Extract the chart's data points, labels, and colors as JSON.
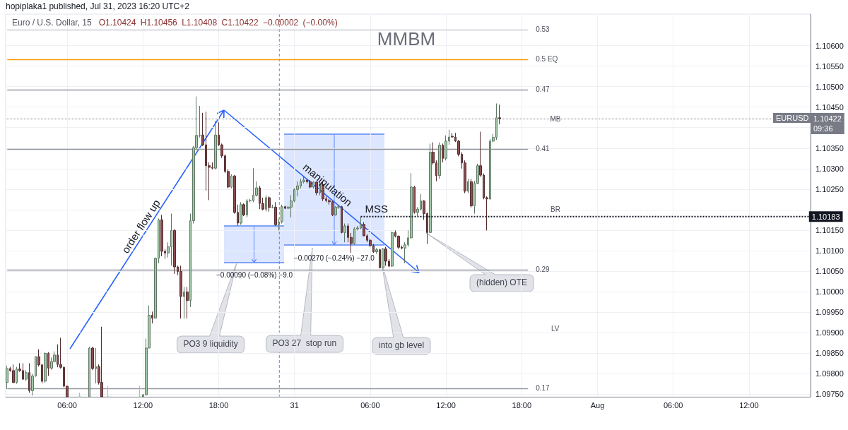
{
  "chart_data": {
    "type": "candlestick",
    "title": "MMBM",
    "subtitle": "Euro / U.S. Dollar, 15",
    "annotations": [
      "hopiplaka1 published, Jul 31, 2023 16:20 UTC+2",
      "O1.10424 H1.10456 L1.10408 C1.10422 −0.00002 (−0.00%)",
      "0.53",
      "0.5 EQ",
      "0.47",
      "MB",
      "0.41",
      "BR",
      "0.29",
      "LV",
      "0.17",
      "EURUSD",
      "order flow up",
      "manipulation",
      "−0.00090 (−0.08%) −9.0",
      "−0.00270 (−0.24%) −27.0",
      "PO3 9 liquidity",
      "PO3 27  stop run",
      "into gb level",
      "(hidden) OTE"
    ],
    "categories": [
      null,
      null,
      null,
      null,
      null,
      null,
      null,
      null,
      null,
      null,
      null,
      null,
      null,
      null,
      null,
      null,
      null,
      null,
      null,
      "06:00",
      null,
      null,
      null,
      null,
      null,
      null,
      null,
      null,
      null,
      null,
      null,
      null,
      null,
      null,
      null,
      null,
      null,
      null,
      null,
      null,
      null,
      null,
      null,
      "12:00",
      null,
      null,
      null,
      null,
      null,
      null,
      null,
      null,
      null,
      null,
      null,
      null,
      null,
      null,
      null,
      null,
      null,
      null,
      null,
      null,
      null,
      null,
      null,
      "18:00",
      null,
      null,
      null,
      null,
      null,
      null,
      null,
      null,
      null,
      null,
      null,
      null,
      null,
      null,
      null,
      null,
      null,
      null,
      null,
      null,
      null,
      null,
      null,
      "31",
      null,
      null,
      null,
      null,
      null,
      null,
      null,
      null,
      null,
      null,
      null,
      null,
      null,
      null,
      null,
      null,
      null,
      null,
      null,
      null,
      null,
      null,
      null,
      "06:00",
      null,
      null,
      null,
      null,
      null,
      null,
      null,
      null,
      null,
      null,
      null,
      null,
      null,
      null,
      null,
      null,
      null,
      null,
      null,
      null,
      null,
      null,
      null,
      "12:00",
      null,
      null,
      null,
      null,
      null,
      null,
      null,
      null,
      null,
      null,
      null,
      null,
      null,
      null,
      null,
      null,
      null,
      null,
      null,
      null,
      null,
      null,
      null,
      "18:00",
      null,
      null,
      null,
      null,
      null,
      null,
      null,
      null,
      null,
      null,
      null,
      null,
      null,
      null,
      null,
      null,
      null,
      null,
      null,
      null,
      null,
      null,
      null,
      "Aug",
      null,
      null,
      null,
      null,
      null,
      null,
      null,
      null,
      null,
      null,
      null,
      null,
      null,
      null,
      null,
      null,
      null,
      null,
      null,
      null,
      null,
      null,
      null,
      "06:00",
      null,
      null,
      null,
      null,
      null,
      null,
      null,
      null,
      null,
      null,
      null,
      null,
      null,
      null,
      null,
      null,
      null,
      null,
      null,
      null,
      null,
      null,
      null,
      "12:00",
      null,
      null,
      null,
      null,
      null,
      null,
      null,
      null,
      null,
      null,
      null,
      null,
      null,
      null,
      null,
      null,
      null,
      null,
      null
    ],
    "ylim": [
      1.09743,
      1.10677
    ],
    "yticks": [
      {
        "value": 1.0975,
        "label": "1.09750"
      },
      {
        "value": 1.098,
        "label": "1.09800"
      },
      {
        "value": 1.0985,
        "label": "1.09850"
      },
      {
        "value": 1.099,
        "label": "1.09900"
      },
      {
        "value": 1.0995,
        "label": "1.09950"
      },
      {
        "value": 1.1,
        "label": "1.10000"
      },
      {
        "value": 1.1005,
        "label": "1.10050"
      },
      {
        "value": 1.101,
        "label": "1.10100"
      },
      {
        "value": 1.1015,
        "label": "1.10150"
      },
      {
        "value": 1.102,
        "label": null
      },
      {
        "value": 1.1025,
        "label": "1.10250"
      },
      {
        "value": 1.103,
        "label": "1.10300"
      },
      {
        "value": 1.1035,
        "label": "1.10350"
      },
      {
        "value": 1.104,
        "label": null
      },
      {
        "value": 1.1045,
        "label": "1.10450"
      },
      {
        "value": 1.105,
        "label": "1.10500"
      },
      {
        "value": 1.1055,
        "label": "1.10550"
      },
      {
        "value": 1.106,
        "label": "1.10600"
      }
    ],
    "grid": true,
    "ref_lines": [
      {
        "axis": "y",
        "value": 1.10639,
        "color": "#c9cbd1"
      },
      {
        "axis": "y",
        "value": 1.10566,
        "color": "#ff9800"
      },
      {
        "axis": "y",
        "value": 1.10493,
        "color": "#9598a1"
      },
      {
        "axis": "y",
        "value": 1.10347,
        "color": "#9598a1"
      },
      {
        "axis": "y",
        "value": 1.10053,
        "color": "#9598a1"
      },
      {
        "axis": "y",
        "value": 1.09763,
        "color": "#9598a1"
      },
      {
        "axis": "y",
        "value": 1.10422,
        "label": "1.10422\n09:36",
        "color": "#787b86",
        "line_style": "dotted"
      }
    ],
    "series": [
      {
        "ohlc": [
          [
            1.09778,
            1.09819,
            1.09762,
            1.09812
          ],
          [
            1.09812,
            1.09816,
            1.09804,
            1.09807
          ],
          [
            1.09807,
            1.09822,
            1.09776,
            1.09778
          ],
          [
            1.09778,
            1.09816,
            1.09775,
            1.09811
          ],
          [
            1.09811,
            1.09825,
            1.09804,
            1.09807
          ],
          [
            1.09807,
            1.09825,
            1.09784,
            1.09786
          ],
          [
            1.09786,
            1.09808,
            1.09782,
            1.09802
          ],
          [
            1.09802,
            1.09825,
            1.09753,
            1.09758
          ],
          [
            1.09758,
            1.09799,
            1.09746,
            1.09794
          ],
          [
            1.09794,
            1.09842,
            1.09792,
            1.09841
          ],
          [
            1.09841,
            1.09859,
            1.09817,
            1.09821
          ],
          [
            1.09821,
            1.09823,
            1.09776,
            1.09781
          ],
          [
            1.09781,
            1.09851,
            1.09778,
            1.09849
          ],
          [
            1.09849,
            1.09852,
            1.09794,
            1.09813
          ],
          [
            1.09813,
            1.09839,
            1.09809,
            1.09829
          ],
          [
            1.09829,
            1.09854,
            1.09827,
            1.09845
          ],
          [
            1.09845,
            1.09871,
            1.09815,
            1.09822
          ],
          [
            1.09822,
            1.09887,
            1.09812,
            1.09815
          ],
          [
            1.09815,
            1.09817,
            1.09766,
            1.09769
          ],
          [
            1.09769,
            1.0977,
            1.09743,
            1.09743
          ],
          null,
          null,
          null,
          [
            1.09743,
            1.09753,
            1.09743,
            1.09743
          ],
          null,
          null,
          [
            1.09743,
            1.09865,
            1.09743,
            1.09862
          ],
          [
            1.09862,
            1.09865,
            1.09808,
            1.09812
          ],
          [
            1.09812,
            1.09862,
            1.09776,
            1.09817
          ],
          [
            1.09817,
            1.09822,
            1.09773,
            1.09778
          ],
          [
            1.09778,
            1.09914,
            1.09743,
            1.09743
          ],
          null,
          [
            1.09743,
            1.0977,
            1.09743,
            1.09743
          ],
          null,
          null,
          null,
          null,
          null,
          null,
          null,
          null,
          null,
          [
            1.09743,
            1.0977,
            1.09743,
            1.09743
          ],
          [
            1.09743,
            1.0975,
            1.09743,
            1.09748
          ],
          [
            1.09748,
            1.09885,
            1.09747,
            1.09862
          ],
          [
            1.09862,
            1.09966,
            1.09862,
            1.09942
          ],
          [
            1.09942,
            1.09951,
            1.09922,
            1.09935
          ],
          [
            1.09935,
            1.10083,
            1.09934,
            1.10081
          ],
          [
            1.10081,
            1.10178,
            1.10069,
            1.10175
          ],
          [
            1.10175,
            1.10187,
            1.10086,
            1.10098
          ],
          [
            1.10098,
            1.10103,
            1.1008,
            1.10094
          ],
          [
            1.10094,
            1.1012,
            1.10083,
            1.10109
          ],
          [
            1.10109,
            1.1019,
            1.10063,
            1.10149
          ],
          [
            1.10149,
            1.10152,
            1.10043,
            1.1006
          ],
          [
            1.1006,
            1.10063,
            1.1004,
            1.10049
          ],
          [
            1.10049,
            1.10063,
            1.09934,
            1.09988
          ],
          [
            1.09988,
            1.10011,
            1.09934,
            1.09999
          ],
          [
            1.09999,
            1.10011,
            1.09934,
            1.09978
          ],
          [
            1.09978,
            1.1019,
            1.09962,
            1.10173
          ],
          [
            1.10173,
            1.10355,
            1.10166,
            1.10351
          ],
          [
            1.10351,
            1.10476,
            1.10347,
            1.10381
          ],
          [
            1.10381,
            1.10453,
            1.10376,
            1.10382
          ],
          [
            1.10382,
            1.10436,
            1.10355,
            1.10358
          ],
          [
            1.10358,
            1.10439,
            1.10246,
            1.10307
          ],
          [
            1.10307,
            1.10315,
            1.10223,
            1.10303
          ],
          [
            1.10303,
            1.10315,
            1.10298,
            1.10301
          ],
          [
            1.10301,
            1.10416,
            1.10298,
            1.10382
          ],
          [
            1.10382,
            1.10413,
            1.10355,
            1.10358
          ],
          [
            1.10358,
            1.10361,
            1.10326,
            1.10331
          ],
          [
            1.10331,
            1.10335,
            1.10289,
            1.10293
          ],
          [
            1.10293,
            1.10298,
            1.10252,
            1.10255
          ],
          [
            1.10255,
            1.10286,
            1.10252,
            1.10282
          ],
          [
            1.10282,
            1.10284,
            1.1019,
            1.10193
          ],
          [
            1.10193,
            1.10212,
            1.10161,
            1.10167
          ],
          [
            1.10167,
            1.10218,
            1.10163,
            1.10212
          ],
          [
            1.10212,
            1.10215,
            1.10184,
            1.10187
          ],
          [
            1.10187,
            1.10226,
            1.10181,
            1.10221
          ],
          [
            1.10221,
            1.10226,
            1.10218,
            1.10222
          ],
          [
            1.10222,
            1.10301,
            1.10218,
            1.10235
          ],
          [
            1.10235,
            1.10269,
            1.10232,
            1.10253
          ],
          [
            1.10253,
            1.10258,
            1.10201,
            1.10215
          ],
          [
            1.10215,
            1.10229,
            1.10198,
            1.10201
          ],
          [
            1.10201,
            1.10235,
            1.10195,
            1.10229
          ],
          [
            1.10229,
            1.10232,
            1.10195,
            1.10205
          ],
          [
            1.10205,
            1.10212,
            1.10203,
            1.10206
          ],
          [
            1.10206,
            1.10218,
            1.1016,
            1.10163
          ],
          [
            1.10163,
            1.10178,
            1.10149,
            1.1017
          ],
          [
            1.1017,
            1.10212,
            1.10166,
            1.10207
          ],
          [
            1.10207,
            1.10209,
            1.10201,
            1.10203
          ],
          [
            1.10203,
            1.10209,
            1.10201,
            1.10206
          ],
          [
            1.10206,
            1.10235,
            1.10181,
            1.10221
          ],
          [
            1.10221,
            1.10252,
            1.10218,
            1.10249
          ],
          [
            1.10249,
            1.10269,
            1.10232,
            1.10258
          ],
          [
            1.10258,
            1.10275,
            1.10252,
            1.10268
          ],
          [
            1.10268,
            1.10281,
            1.10264,
            1.10272
          ],
          [
            1.10272,
            1.10275,
            1.10264,
            1.10268
          ],
          [
            1.10268,
            1.10272,
            1.10252,
            1.10255
          ],
          [
            1.10255,
            1.10269,
            1.10251,
            1.10267
          ],
          [
            1.10267,
            1.10269,
            1.10235,
            1.10241
          ],
          [
            1.10241,
            1.10267,
            1.10235,
            1.10261
          ],
          [
            1.10261,
            1.10267,
            1.10221,
            1.10226
          ],
          [
            1.10226,
            1.10232,
            1.10218,
            1.10222
          ],
          [
            1.10222,
            1.10226,
            1.10212,
            1.10219
          ],
          [
            1.10219,
            1.10221,
            1.10184,
            1.10187
          ],
          [
            1.10187,
            1.10209,
            1.10185,
            1.10206
          ],
          [
            1.10206,
            1.10212,
            1.10201,
            1.10207
          ],
          [
            1.10207,
            1.10209,
            1.10142,
            1.10144
          ],
          [
            1.10144,
            1.10166,
            1.1012,
            1.1016
          ],
          [
            1.1016,
            1.10166,
            1.1012,
            1.10132
          ],
          [
            1.10132,
            1.10143,
            1.10094,
            1.10117
          ],
          [
            1.10117,
            1.10157,
            1.10114,
            1.10153
          ],
          [
            1.10153,
            1.1016,
            1.10149,
            1.10155
          ],
          [
            1.10155,
            1.10183,
            1.10152,
            1.10164
          ],
          [
            1.10164,
            1.10169,
            1.10135,
            1.10136
          ],
          [
            1.10136,
            1.1014,
            1.1012,
            1.10125
          ],
          [
            1.10125,
            1.10129,
            1.10109,
            1.10112
          ],
          [
            1.10112,
            1.10116,
            1.10094,
            1.10097
          ],
          [
            1.10097,
            1.10106,
            1.10092,
            1.10102
          ],
          [
            1.10102,
            1.10104,
            1.10057,
            1.10058
          ],
          [
            1.10058,
            1.10106,
            1.10057,
            1.10104
          ],
          [
            1.10104,
            1.10109,
            1.10063,
            1.10074
          ],
          [
            1.10074,
            1.1008,
            1.10059,
            1.10062
          ],
          [
            1.10062,
            1.10146,
            1.1006,
            1.10144
          ],
          [
            1.10144,
            1.10149,
            1.10132,
            1.10135
          ],
          [
            1.10135,
            1.10137,
            1.10104,
            1.10108
          ],
          [
            1.10108,
            1.10112,
            1.10103,
            1.10106
          ],
          [
            1.10106,
            1.1012,
            1.10069,
            1.10114
          ],
          [
            1.10114,
            1.10149,
            1.10109,
            1.10131
          ],
          [
            1.10131,
            1.10289,
            1.10129,
            1.10255
          ],
          [
            1.10255,
            1.10258,
            1.1019,
            1.10193
          ],
          [
            1.10193,
            1.10206,
            1.10184,
            1.10201
          ],
          [
            1.10201,
            1.10238,
            1.10198,
            1.10221
          ],
          [
            1.10221,
            1.10223,
            1.10175,
            1.1019
          ],
          [
            1.1019,
            1.10193,
            1.10116,
            1.10144
          ],
          [
            1.10144,
            1.10361,
            1.10143,
            1.1034
          ],
          [
            1.1034,
            1.10364,
            1.1031,
            1.10314
          ],
          [
            1.10314,
            1.1032,
            1.10269,
            1.10283
          ],
          [
            1.10283,
            1.10364,
            1.10275,
            1.10357
          ],
          [
            1.10357,
            1.10361,
            1.10315,
            1.10325
          ],
          [
            1.10325,
            1.10381,
            1.1032,
            1.10367
          ],
          [
            1.10367,
            1.10395,
            1.10358,
            1.10377
          ],
          [
            1.10379,
            1.10387,
            1.10376,
            1.10377
          ],
          [
            1.10377,
            1.10387,
            1.10365,
            1.10367
          ],
          [
            1.10367,
            1.1037,
            1.1033,
            1.10335
          ],
          [
            1.10335,
            1.1034,
            1.103,
            1.10314
          ],
          [
            1.10314,
            1.1032,
            1.1024,
            1.10245
          ],
          [
            1.10245,
            1.10275,
            1.1024,
            1.10268
          ],
          [
            1.10268,
            1.10275,
            1.10205,
            1.10209
          ],
          [
            1.10209,
            1.1027,
            1.1019,
            1.10264
          ],
          [
            1.10264,
            1.10312,
            1.10262,
            1.10307
          ],
          [
            1.10307,
            1.1039,
            1.1028,
            1.10284
          ],
          [
            1.10284,
            1.10288,
            1.10225,
            1.10229
          ],
          [
            1.10229,
            1.10232,
            1.10149,
            1.10226
          ],
          [
            1.10226,
            1.10372,
            1.10224,
            1.10367
          ],
          [
            1.10367,
            1.10385,
            1.10364,
            1.10376
          ],
          [
            1.10376,
            1.10459,
            1.1037,
            1.10424
          ],
          [
            1.10424,
            1.10456,
            1.10408,
            1.10422
          ],
          null,
          null,
          null,
          null,
          null,
          null,
          null,
          null,
          null,
          null,
          null,
          null,
          null,
          null,
          null,
          null,
          null,
          null,
          null,
          null,
          null,
          null,
          null,
          null,
          null,
          null,
          null,
          null,
          null,
          null,
          null,
          null,
          null,
          null,
          null,
          null,
          null,
          null,
          null,
          null,
          null,
          null,
          null,
          null,
          null,
          null,
          null,
          null,
          null,
          null,
          null,
          null,
          null,
          null,
          null,
          null,
          null,
          null,
          null,
          null,
          null,
          null,
          null,
          null,
          null,
          null,
          null,
          null,
          null,
          null,
          null,
          null,
          null,
          null,
          null,
          null,
          null,
          null,
          null,
          null,
          null,
          null,
          null,
          null,
          null,
          null,
          null,
          null,
          null,
          null,
          null,
          null,
          null,
          null,
          null,
          null,
          null,
          null
        ],
        "colors": [
          "#9fc7a7",
          "#8c4b4e",
          "#8c4b4e",
          "#9fc7a7",
          "#8c4b4e",
          "#8c4b4e",
          "#9fc7a7",
          "#8c4b4e",
          "#9fc7a7",
          "#9fc7a7",
          "#8c4b4e",
          "#8c4b4e",
          "#9fc7a7",
          "#8c4b4e",
          "#9fc7a7",
          "#9fc7a7",
          "#8c4b4e",
          "#8c4b4e",
          "#8c4b4e",
          "#8c4b4e",
          null,
          null,
          null,
          "#9fc7a7",
          null,
          null,
          "#9fc7a7",
          "#8c4b4e",
          "#9fc7a7",
          "#8c4b4e",
          "#8c4b4e",
          null,
          "#9fc7a7",
          null,
          null,
          null,
          null,
          null,
          null,
          null,
          null,
          null,
          "#9fc7a7",
          "#9fc7a7",
          "#9fc7a7",
          "#9fc7a7",
          "#8c4b4e",
          "#9fc7a7",
          "#9fc7a7",
          "#8c4b4e",
          "#8c4b4e",
          "#9fc7a7",
          "#9fc7a7",
          "#8c4b4e",
          "#8c4b4e",
          "#8c4b4e",
          "#9fc7a7",
          "#8c4b4e",
          "#9fc7a7",
          "#9fc7a7",
          "#9fc7a7",
          "#9fc7a7",
          "#8c4b4e",
          "#8c4b4e",
          "#8c4b4e",
          "#8c4b4e",
          "#9fc7a7",
          "#8c4b4e",
          "#8c4b4e",
          "#8c4b4e",
          "#8c4b4e",
          "#9fc7a7",
          "#8c4b4e",
          "#8c4b4e",
          "#9fc7a7",
          "#8c4b4e",
          "#9fc7a7",
          "#9fc7a7",
          "#9fc7a7",
          "#9fc7a7",
          "#8c4b4e",
          "#8c4b4e",
          "#9fc7a7",
          "#8c4b4e",
          "#9fc7a7",
          "#8c4b4e",
          "#9fc7a7",
          "#9fc7a7",
          "#8c4b4e",
          "#9fc7a7",
          "#9fc7a7",
          "#9fc7a7",
          "#9fc7a7",
          "#9fc7a7",
          "#9fc7a7",
          "#8c4b4e",
          "#8c4b4e",
          "#9fc7a7",
          "#8c4b4e",
          "#9fc7a7",
          "#8c4b4e",
          "#8c4b4e",
          "#8c4b4e",
          "#8c4b4e",
          "#9fc7a7",
          "#9fc7a7",
          "#8c4b4e",
          "#9fc7a7",
          "#8c4b4e",
          "#8c4b4e",
          "#9fc7a7",
          "#9fc7a7",
          "#9fc7a7",
          "#8c4b4e",
          "#8c4b4e",
          "#8c4b4e",
          "#8c4b4e",
          "#9fc7a7",
          "#8c4b4e",
          "#9fc7a7",
          "#8c4b4e",
          "#8c4b4e",
          "#9fc7a7",
          "#8c4b4e",
          "#8c4b4e",
          "#8c4b4e",
          "#9fc7a7",
          "#9fc7a7",
          "#9fc7a7",
          "#8c4b4e",
          "#9fc7a7",
          "#9fc7a7",
          "#8c4b4e",
          "#8c4b4e",
          "#9fc7a7",
          "#8c4b4e",
          "#8c4b4e",
          "#9fc7a7",
          "#8c4b4e",
          "#9fc7a7",
          "#9fc7a7",
          "#8c4b4e",
          "#8c4b4e",
          "#8c4b4e",
          "#8c4b4e",
          "#8c4b4e",
          "#9fc7a7",
          "#8c4b4e",
          "#9fc7a7",
          "#9fc7a7",
          "#8c4b4e",
          "#8c4b4e",
          "#8c4b4e",
          "#9fc7a7",
          "#9fc7a7",
          "#9fc7a7",
          "#8c4b4e",
          null,
          null,
          null,
          null,
          null,
          null,
          null,
          null,
          null,
          null,
          null,
          null,
          null,
          null,
          null,
          null,
          null,
          null,
          null,
          null,
          null,
          null,
          null,
          null,
          null,
          null,
          null,
          null,
          null,
          null,
          null,
          null,
          null,
          null,
          null,
          null,
          null,
          null,
          null,
          null,
          null,
          null,
          null,
          null,
          null,
          null,
          null,
          null,
          null,
          null,
          null,
          null,
          null,
          null,
          null,
          null,
          null,
          null,
          null,
          null,
          null,
          null,
          null,
          null,
          null,
          null,
          null,
          null,
          null,
          null,
          null,
          null,
          null,
          null,
          null,
          null,
          null,
          null,
          null,
          null,
          null,
          null,
          null,
          null,
          null,
          null,
          null,
          null,
          null,
          null,
          null,
          null,
          null,
          null,
          null,
          null,
          null,
          null
        ]
      },
      {
        "type": "line",
        "name": "MSS",
        "color": "#131722",
        "line_style": "dotted",
        "values": [
          null,
          null,
          null,
          null,
          null,
          null,
          null,
          null,
          null,
          null,
          null,
          null,
          null,
          null,
          null,
          null,
          null,
          null,
          null,
          null,
          null,
          null,
          null,
          null,
          null,
          null,
          null,
          null,
          null,
          null,
          null,
          null,
          null,
          null,
          null,
          null,
          null,
          null,
          null,
          null,
          null,
          null,
          null,
          null,
          null,
          null,
          null,
          null,
          null,
          null,
          null,
          null,
          null,
          null,
          null,
          null,
          null,
          null,
          null,
          null,
          null,
          null,
          null,
          null,
          null,
          null,
          null,
          null,
          null,
          null,
          null,
          null,
          null,
          null,
          null,
          null,
          null,
          null,
          null,
          null,
          null,
          null,
          null,
          null,
          null,
          null,
          null,
          null,
          null,
          null,
          null,
          null,
          null,
          null,
          null,
          null,
          null,
          null,
          null,
          null,
          null,
          null,
          null,
          null,
          null,
          null,
          null,
          null,
          null,
          null,
          null,
          null,
          1.10183,
          null,
          null,
          null,
          null,
          null,
          null,
          null,
          null,
          null,
          null,
          null,
          null,
          null,
          null,
          null,
          null,
          null,
          null,
          null,
          null,
          null,
          null,
          null,
          null,
          null,
          null,
          null,
          null,
          null,
          null,
          null,
          null,
          null,
          null,
          null,
          null,
          null,
          null,
          null,
          null,
          null,
          null,
          null,
          null,
          null,
          null,
          null,
          null,
          null,
          null,
          null,
          null,
          null,
          null,
          null,
          null,
          null,
          null,
          null,
          null,
          null,
          null,
          null,
          null,
          null,
          null,
          null,
          null,
          null,
          null,
          null,
          null,
          null,
          null,
          null,
          null,
          null,
          null,
          null,
          null,
          null,
          null,
          null,
          null,
          null,
          null,
          null,
          null,
          null,
          null,
          null,
          null,
          null,
          null,
          null,
          null,
          null,
          null,
          null,
          null,
          null,
          null,
          null,
          null,
          null,
          null,
          null,
          null,
          null,
          null,
          null,
          null,
          null,
          null,
          null,
          null,
          null,
          null,
          null,
          null,
          null,
          null,
          null,
          null,
          null,
          null,
          null,
          null,
          null,
          null,
          null,
          null,
          null,
          null,
          null,
          null,
          null,
          null,
          null,
          null,
          null,
          1.10183
        ],
        "value_labels": [
          null,
          null,
          null,
          null,
          null,
          null,
          null,
          null,
          null,
          null,
          null,
          null,
          null,
          null,
          null,
          null,
          null,
          null,
          null,
          null,
          null,
          null,
          null,
          null,
          null,
          null,
          null,
          null,
          null,
          null,
          null,
          null,
          null,
          null,
          null,
          null,
          null,
          null,
          null,
          null,
          null,
          null,
          null,
          null,
          null,
          null,
          null,
          null,
          null,
          null,
          null,
          null,
          null,
          null,
          null,
          null,
          null,
          null,
          null,
          null,
          null,
          null,
          null,
          null,
          null,
          null,
          null,
          null,
          null,
          null,
          null,
          null,
          null,
          null,
          null,
          null,
          null,
          null,
          null,
          null,
          null,
          null,
          null,
          null,
          null,
          null,
          null,
          null,
          null,
          null,
          null,
          null,
          null,
          null,
          null,
          null,
          null,
          null,
          null,
          null,
          null,
          null,
          null,
          null,
          null,
          null,
          null,
          null,
          null,
          null,
          null,
          null,
          null,
          null,
          null,
          null,
          null,
          null,
          null,
          null,
          null,
          null,
          null,
          null,
          null,
          null,
          null,
          null,
          null,
          null,
          null,
          null,
          null,
          null,
          null,
          null,
          null,
          null,
          null,
          null,
          null,
          null,
          null,
          null,
          null,
          null,
          null,
          null,
          null,
          null,
          null,
          null,
          null,
          null,
          null,
          null,
          null,
          null,
          null,
          null,
          null,
          null,
          null,
          null,
          null,
          null,
          null,
          null,
          null,
          null,
          null,
          null,
          null,
          null,
          null,
          null,
          null,
          null,
          null,
          null,
          null,
          null,
          null,
          null,
          null,
          null,
          null,
          null,
          null,
          null,
          null,
          null,
          null,
          null,
          null,
          null,
          null,
          null,
          null,
          null,
          null,
          null,
          null,
          null,
          null,
          null,
          null,
          null,
          null,
          null,
          null,
          null,
          null,
          null,
          null,
          null,
          null,
          null,
          null,
          null,
          null,
          null,
          null,
          null,
          null,
          null,
          null,
          null,
          null,
          null,
          null,
          null,
          null,
          null,
          null,
          null,
          null,
          null,
          null,
          null,
          null,
          null,
          null,
          null,
          null,
          null,
          null,
          null,
          null,
          null,
          null,
          null,
          null,
          null,
          "1.10183"
        ]
      }
    ]
  }
}
